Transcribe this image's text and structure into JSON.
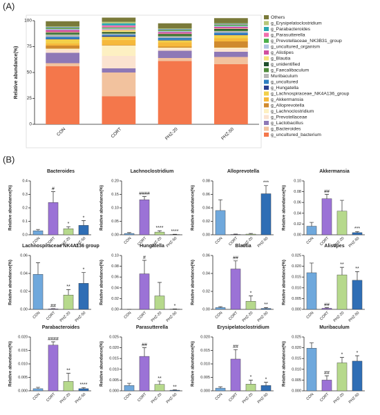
{
  "panels": [
    "(A)",
    "(B)"
  ],
  "chart_data": [
    {
      "type": "stacked",
      "ylabel": "Relative abundance(%)",
      "categories": [
        "CON",
        "CORT",
        "PHZ-20",
        "PHZ-50"
      ],
      "ylim": [
        0,
        100
      ],
      "yticks": [
        0,
        25,
        50,
        75,
        100
      ],
      "series": [
        {
          "name": "g_uncultured_bacterium",
          "color": "#f4774b",
          "values": [
            56,
            27,
            61,
            58
          ]
        },
        {
          "name": "g_Bacteroides",
          "color": "#f2c29e",
          "values": [
            3,
            23,
            3,
            7
          ]
        },
        {
          "name": "g_Lactobacillus",
          "color": "#8e78b6",
          "values": [
            10,
            4,
            7,
            5
          ]
        },
        {
          "name": "g_Prevotellaceae",
          "color": "#fbe3d0",
          "values": [
            3,
            12,
            2,
            3
          ]
        },
        {
          "name": "g_Lachnoclostridium",
          "color": "#fdf0c2",
          "values": [
            1,
            10,
            1,
            1
          ]
        },
        {
          "name": "g_Alloprevotella",
          "color": "#d08a2e",
          "values": [
            3,
            0.5,
            1,
            6
          ]
        },
        {
          "name": "g_Akkermansia",
          "color": "#f6b93b",
          "values": [
            2,
            5,
            4,
            3
          ]
        },
        {
          "name": "g_Lachnospiraceae_NK4A136_group",
          "color": "#f2d04a",
          "values": [
            4,
            3,
            2,
            3
          ]
        },
        {
          "name": "g_Hungatella",
          "color": "#2b3f8f",
          "values": [
            0.5,
            1,
            0.5,
            0.5
          ]
        },
        {
          "name": "g_uncultured",
          "color": "#2f7fc1",
          "values": [
            2,
            1,
            2,
            2
          ]
        },
        {
          "name": "Muribaculum",
          "color": "#b7b7b7",
          "values": [
            2,
            1,
            1.5,
            1.5
          ]
        },
        {
          "name": "g_Faecalibaculum",
          "color": "#4d8a3a",
          "values": [
            1,
            0.5,
            1,
            1
          ]
        },
        {
          "name": "g_unidentified",
          "color": "#1f4e2c",
          "values": [
            1,
            1,
            1,
            1
          ]
        },
        {
          "name": "g_Blautia",
          "color": "#f5e27a",
          "values": [
            0.5,
            2,
            0.5,
            0.5
          ]
        },
        {
          "name": "g_Alistipes",
          "color": "#d04fa0",
          "values": [
            2,
            0.5,
            1.5,
            1.5
          ]
        },
        {
          "name": "g_uncultured_organism",
          "color": "#b0c4e0",
          "values": [
            1,
            1,
            1,
            1
          ]
        },
        {
          "name": "g_Prevotellaceae_NK3B31_group",
          "color": "#4bb04b",
          "values": [
            1,
            1,
            1,
            1
          ]
        },
        {
          "name": "g_Parasutterella",
          "color": "#f06fae",
          "values": [
            0.5,
            2,
            0.5,
            0.5
          ]
        },
        {
          "name": "g_Parabacteroides",
          "color": "#2aa7b0",
          "values": [
            0.5,
            2,
            0.5,
            0.5
          ]
        },
        {
          "name": "g_Erysipelatoclostridium",
          "color": "#b8c77a",
          "values": [
            0.5,
            1.5,
            0.5,
            0.5
          ]
        },
        {
          "name": "Others",
          "color": "#7a7a3a",
          "values": [
            5,
            4,
            5,
            5
          ]
        }
      ]
    },
    {
      "type": "bar",
      "title": "Bacteroides",
      "ylabel": "Relative abundance(%)",
      "categories": [
        "CON",
        "CORT",
        "PHZ-20",
        "PHZ-50"
      ],
      "colors": [
        "#6fa8dc",
        "#9b72d6",
        "#b6d98c",
        "#2f6eb5"
      ],
      "values": [
        0.03,
        0.24,
        0.045,
        0.07
      ],
      "error": [
        0.01,
        0.08,
        0.015,
        0.035
      ],
      "annotations": [
        null,
        "#",
        "*",
        "*"
      ],
      "ylim": [
        0,
        0.4
      ],
      "yticks": [
        {
          "value": 0,
          "label": "0.0"
        },
        0.1,
        0.2,
        0.3,
        0.4
      ]
    },
    {
      "type": "bar",
      "title": "Lachnoclostridium",
      "ylabel": "Relative abundance(%)",
      "categories": [
        "CON",
        "CORT",
        "PHZ-20",
        "PHZ-50"
      ],
      "colors": [
        "#6fa8dc",
        "#9b72d6",
        "#b6d98c",
        "#2f6eb5"
      ],
      "values": [
        0.005,
        0.13,
        0.01,
        0.001
      ],
      "error": [
        0.003,
        0.012,
        0.005,
        0.001
      ],
      "annotations": [
        null,
        "####",
        "****",
        "****"
      ],
      "ylim": [
        0,
        0.2
      ],
      "yticks": [
        {
          "value": 0,
          "label": "0.00"
        },
        0.05,
        {
          "value": 0.1,
          "label": "0.10"
        },
        0.15,
        {
          "value": 0.2,
          "label": "0.20"
        }
      ]
    },
    {
      "type": "bar",
      "title": "Alloprevotella",
      "ylabel": "Relative abundance(%)",
      "categories": [
        "CON",
        "CORT",
        "PHZ-20",
        "PHZ-50"
      ],
      "colors": [
        "#6fa8dc",
        "#9b72d6",
        "#b6d98c",
        "#2f6eb5"
      ],
      "values": [
        0.036,
        0.0005,
        0.001,
        0.061
      ],
      "error": [
        0.016,
        0.0005,
        0.001,
        0.012
      ],
      "annotations": [
        null,
        null,
        null,
        "***"
      ],
      "ylim": [
        0,
        0.08
      ],
      "yticks": [
        {
          "value": 0,
          "label": "0.00"
        },
        0.02,
        0.04,
        0.06,
        0.08
      ]
    },
    {
      "type": "bar",
      "title": "Akkermansia",
      "ylabel": "Relative abundance(%)",
      "categories": [
        "CON",
        "CORT",
        "PHZ-20",
        "PHZ-50"
      ],
      "colors": [
        "#6fa8dc",
        "#9b72d6",
        "#b6d98c",
        "#2f6eb5"
      ],
      "values": [
        0.016,
        0.067,
        0.044,
        0.004
      ],
      "error": [
        0.007,
        0.008,
        0.02,
        0.002
      ],
      "annotations": [
        null,
        "##",
        null,
        "***"
      ],
      "ylim": [
        0,
        0.1
      ],
      "yticks": [
        {
          "value": 0,
          "label": "0.00"
        },
        0.02,
        0.04,
        0.06,
        0.08,
        {
          "value": 0.1,
          "label": "0.10"
        }
      ]
    },
    {
      "type": "bar",
      "title": "Lachnospiraceae NK4A136 group",
      "ylabel": "Relative abundance(%)",
      "categories": [
        "CON",
        "CORT",
        "PHZ-20",
        "PHZ-50"
      ],
      "colors": [
        "#6fa8dc",
        "#9b72d6",
        "#b6d98c",
        "#2f6eb5"
      ],
      "values": [
        0.039,
        0.0005,
        0.016,
        0.029
      ],
      "error": [
        0.013,
        0.0003,
        0.006,
        0.012
      ],
      "annotations": [
        null,
        "##",
        "**",
        "*"
      ],
      "ylim": [
        0,
        0.06
      ],
      "yticks": [
        {
          "value": 0,
          "label": "0.00"
        },
        0.02,
        0.04,
        0.06
      ]
    },
    {
      "type": "bar",
      "title": "Hungatella",
      "ylabel": "Relative abundance(%)",
      "categories": [
        "CON",
        "CORT",
        "PHZ-20",
        "PHZ-50"
      ],
      "colors": [
        "#6fa8dc",
        "#9b72d6",
        "#b6d98c",
        "#2f6eb5"
      ],
      "values": [
        0,
        0.066,
        0.025,
        0.0005
      ],
      "error": [
        0,
        0.025,
        0.025,
        0.0003
      ],
      "annotations": [
        null,
        "#",
        null,
        "*"
      ],
      "ylim": [
        0,
        0.1
      ],
      "yticks": [
        {
          "value": 0,
          "label": "0.00"
        },
        0.02,
        0.04,
        0.06,
        0.08,
        {
          "value": 0.1,
          "label": "0.10"
        }
      ]
    },
    {
      "type": "bar",
      "title": "Blautia",
      "ylabel": "Relative abundance(%)",
      "categories": [
        "CON",
        "CORT",
        "PHZ-20",
        "PHZ-50"
      ],
      "colors": [
        "#6fa8dc",
        "#9b72d6",
        "#b6d98c",
        "#2f6eb5"
      ],
      "values": [
        0.002,
        0.045,
        0.009,
        0.001
      ],
      "error": [
        0.001,
        0.009,
        0.006,
        0.001
      ],
      "annotations": [
        null,
        "##",
        "*",
        "**"
      ],
      "ylim": [
        0,
        0.06
      ],
      "yticks": [
        {
          "value": 0,
          "label": "0.00"
        },
        0.02,
        0.04,
        0.06
      ]
    },
    {
      "type": "bar",
      "title": "Alistipes",
      "ylabel": "Relative abundance(%)",
      "categories": [
        "CON",
        "CORT",
        "PHZ-20",
        "PHZ-50"
      ],
      "colors": [
        "#6fa8dc",
        "#9b72d6",
        "#b6d98c",
        "#2f6eb5"
      ],
      "values": [
        0.017,
        0.0005,
        0.016,
        0.0135
      ],
      "error": [
        0.0045,
        0.0003,
        0.0035,
        0.004
      ],
      "annotations": [
        null,
        "##",
        "**",
        "**"
      ],
      "ylim": [
        0,
        0.025
      ],
      "yticks": [
        {
          "value": 0,
          "label": "0.000"
        },
        0.005,
        {
          "value": 0.01,
          "label": "0.010"
        },
        0.015,
        {
          "value": 0.02,
          "label": "0.020"
        },
        0.025
      ]
    },
    {
      "type": "bar",
      "title": "Parabacteroides",
      "ylabel": "Relative abundance(%)",
      "categories": [
        "CON",
        "CORT",
        "PHZ-20",
        "PHZ-50"
      ],
      "colors": [
        "#6fa8dc",
        "#9b72d6",
        "#b6d98c",
        "#2f6eb5"
      ],
      "values": [
        0.0008,
        0.017,
        0.0035,
        0.0008
      ],
      "error": [
        0.0005,
        0.0012,
        0.003,
        0.0004
      ],
      "annotations": [
        null,
        "####",
        "**",
        "****"
      ],
      "ylim": [
        0,
        0.02
      ],
      "yticks": [
        {
          "value": 0,
          "label": "0.000"
        },
        0.005,
        {
          "value": 0.01,
          "label": "0.010"
        },
        0.015,
        {
          "value": 0.02,
          "label": "0.020"
        }
      ]
    },
    {
      "type": "bar",
      "title": "Parasutterella",
      "ylabel": "Relative abundance(%)",
      "categories": [
        "CON",
        "CORT",
        "PHZ-20",
        "PHZ-50"
      ],
      "colors": [
        "#6fa8dc",
        "#9b72d6",
        "#b6d98c",
        "#2f6eb5"
      ],
      "values": [
        0.0025,
        0.016,
        0.003,
        0.0003
      ],
      "error": [
        0.001,
        0.004,
        0.0015,
        0.0002
      ],
      "annotations": [
        null,
        "##",
        "**",
        "**"
      ],
      "ylim": [
        0,
        0.025
      ],
      "yticks": [
        {
          "value": 0,
          "label": "0.000"
        },
        0.005,
        {
          "value": 0.01,
          "label": "0.010"
        },
        0.015,
        {
          "value": 0.02,
          "label": "0.020"
        },
        0.025
      ]
    },
    {
      "type": "bar",
      "title": "Erysipelatoclostridium",
      "ylabel": "Relative abundance(%)",
      "categories": [
        "CON",
        "CORT",
        "PHZ-20",
        "PHZ-50"
      ],
      "colors": [
        "#6fa8dc",
        "#9b72d6",
        "#b6d98c",
        "#2f6eb5"
      ],
      "values": [
        0.001,
        0.0118,
        0.0025,
        0.002
      ],
      "error": [
        0.0005,
        0.0035,
        0.0015,
        0.0012
      ],
      "annotations": [
        null,
        "##",
        "*",
        "*"
      ],
      "ylim": [
        0,
        0.02
      ],
      "yticks": [
        {
          "value": 0,
          "label": "0.000"
        },
        0.005,
        {
          "value": 0.01,
          "label": "0.010"
        },
        0.015,
        {
          "value": 0.02,
          "label": "0.020"
        }
      ]
    },
    {
      "type": "bar",
      "title": "Muribaculum",
      "ylabel": "Relative abundance(%)",
      "categories": [
        "CON",
        "CORT",
        "PHZ-20",
        "PHZ-50"
      ],
      "colors": [
        "#6fa8dc",
        "#9b72d6",
        "#b6d98c",
        "#2f6eb5"
      ],
      "values": [
        0.0198,
        0.005,
        0.013,
        0.0138
      ],
      "error": [
        0.0025,
        0.002,
        0.0025,
        0.0025
      ],
      "annotations": [
        null,
        "##",
        "*",
        "*"
      ],
      "ylim": [
        0,
        0.025
      ],
      "yticks": [
        {
          "value": 0,
          "label": "0.000"
        },
        0.005,
        {
          "value": 0.01,
          "label": "0.010"
        },
        0.015,
        {
          "value": 0.02,
          "label": "0.020"
        },
        0.025
      ]
    }
  ]
}
